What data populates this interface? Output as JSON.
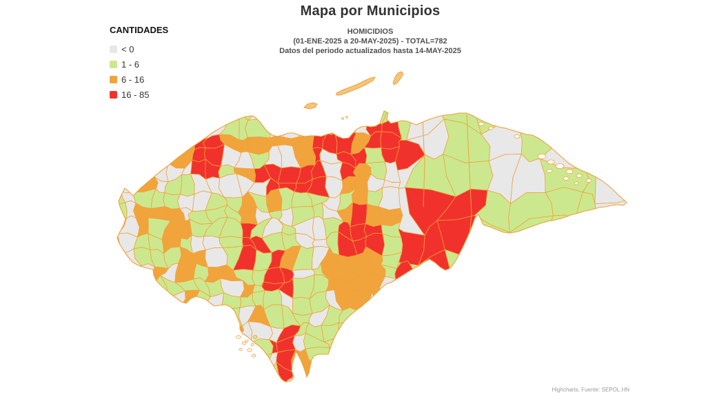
{
  "title": "Mapa por Municipios",
  "subtitle": {
    "line1": "HOMICIDIOS",
    "line2": "(01-ENE-2025 a 20-MAY-2025) - TOTAL=782",
    "line3": "Datos del periodo actualizados hasta 14-MAY-2025"
  },
  "legend": {
    "heading": "CANTIDADES",
    "items": [
      {
        "label": "< 0",
        "color": "#e8e8e8"
      },
      {
        "label": "1 - 6",
        "color": "#cce88e"
      },
      {
        "label": "6 - 16",
        "color": "#f2a43c"
      },
      {
        "label": "16 - 85",
        "color": "#f1312c"
      }
    ]
  },
  "credits": "Highcharts, Fuente: SEPOL.HN",
  "map": {
    "border_color": "#f0a13a",
    "sea_color": "#ffffff",
    "island_color": "#f2c57c",
    "class_colors": [
      "#e8e8e8",
      "#cce88e",
      "#f2a43c",
      "#f1312c"
    ]
  },
  "chart_data": {
    "type": "map-choropleth",
    "region": "Honduras, municipios",
    "title": "Mapa por Municipios",
    "subtitle": [
      "HOMICIDIOS",
      "(01-ENE-2025 a 20-MAY-2025) - TOTAL=782",
      "Datos del periodo actualizados hasta 14-MAY-2025"
    ],
    "metric": "Homicidios",
    "total": 782,
    "legend_title": "CANTIDADES",
    "classes": [
      {
        "label": "< 0",
        "color": "#e8e8e8"
      },
      {
        "label": "1 - 6",
        "color": "#cce88e"
      },
      {
        "label": "6 - 16",
        "color": "#f2a43c"
      },
      {
        "label": "16 - 85",
        "color": "#f1312c"
      }
    ]
  }
}
